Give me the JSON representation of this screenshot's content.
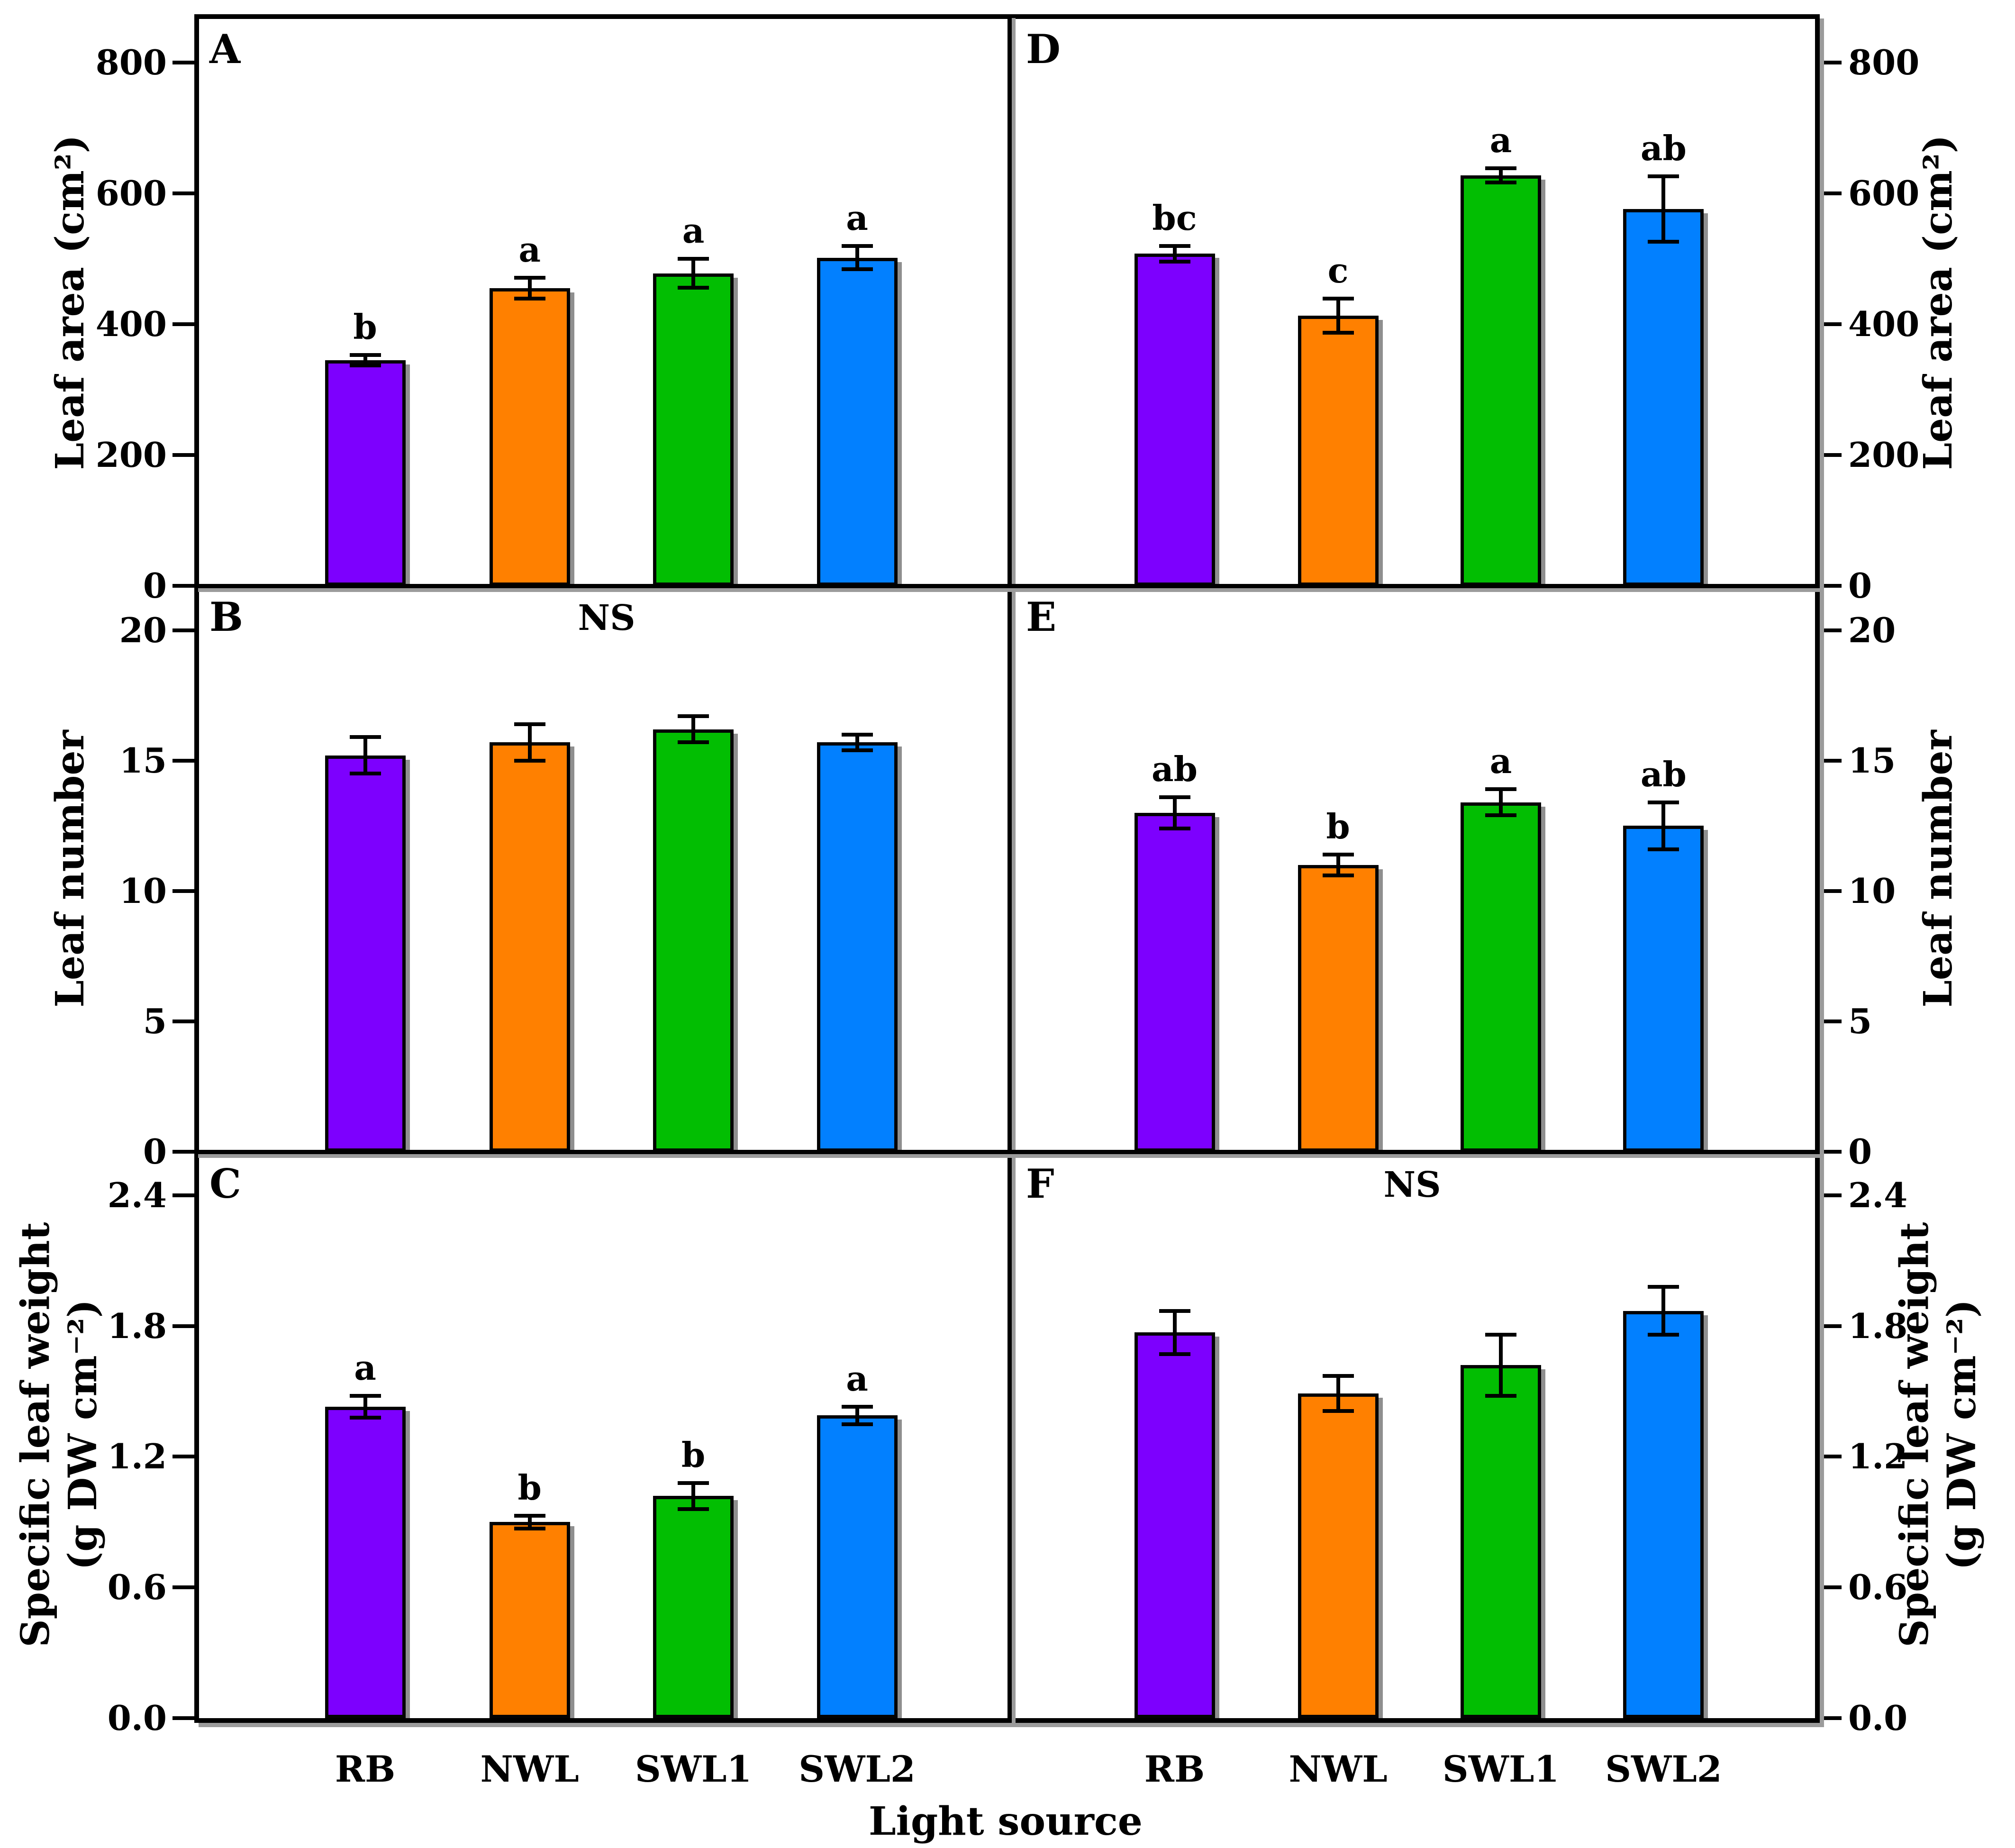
{
  "figure": {
    "xlabel": "Light source",
    "categories": [
      "RB",
      "NWL",
      "SWL1",
      "SWL2"
    ],
    "bar_colors": [
      "#7D00FE",
      "#FF8000",
      "#02BE02",
      "#0280FF"
    ],
    "ns_label": "NS",
    "axis_color": "#000000",
    "shadow_color": "#9b9b9b",
    "background": "#ffffff"
  },
  "chart_data": [
    {
      "panel": "A",
      "type": "bar",
      "row": 0,
      "side": "left",
      "ylabel_lines": [
        "Leaf area (cm²)"
      ],
      "axis_max": 867,
      "tick_values": [
        0,
        200,
        400,
        600,
        800
      ],
      "tick_labels": [
        "0",
        "200",
        "400",
        "600",
        "800"
      ],
      "categories": [
        "RB",
        "NWL",
        "SWL1",
        "SWL2"
      ],
      "values": [
        345,
        455,
        478,
        502
      ],
      "errors": [
        8,
        16,
        22,
        18
      ],
      "sig_letters": [
        "b",
        "a",
        "a",
        "a"
      ],
      "ns": false
    },
    {
      "panel": "B",
      "type": "bar",
      "row": 1,
      "side": "left",
      "ylabel_lines": [
        "Leaf number"
      ],
      "axis_max": 21.7,
      "tick_values": [
        0,
        5,
        10,
        15,
        20
      ],
      "tick_labels": [
        "0",
        "5",
        "10",
        "15",
        "20"
      ],
      "categories": [
        "RB",
        "NWL",
        "SWL1",
        "SWL2"
      ],
      "values": [
        15.2,
        15.7,
        16.2,
        15.7
      ],
      "errors": [
        0.7,
        0.7,
        0.5,
        0.3
      ],
      "sig_letters": null,
      "ns": true
    },
    {
      "panel": "C",
      "type": "bar",
      "row": 2,
      "side": "left",
      "ylabel_lines": [
        "Specific leaf weight",
        "(g DW cm⁻²)"
      ],
      "axis_max": 2.6,
      "tick_values": [
        0,
        0.6,
        1.2,
        1.8,
        2.4
      ],
      "tick_labels": [
        "0.0",
        "0.6",
        "1.2",
        "1.8",
        "2.4"
      ],
      "categories": [
        "RB",
        "NWL",
        "SWL1",
        "SWL2"
      ],
      "values": [
        1.43,
        0.9,
        1.02,
        1.39
      ],
      "errors": [
        0.05,
        0.03,
        0.06,
        0.04
      ],
      "sig_letters": [
        "a",
        "b",
        "b",
        "a"
      ],
      "ns": false
    },
    {
      "panel": "D",
      "type": "bar",
      "row": 0,
      "side": "right",
      "ylabel_lines": [
        "Leaf area (cm²)"
      ],
      "axis_max": 867,
      "tick_values": [
        0,
        200,
        400,
        600,
        800
      ],
      "tick_labels": [
        "0",
        "200",
        "400",
        "600",
        "800"
      ],
      "categories": [
        "RB",
        "NWL",
        "SWL1",
        "SWL2"
      ],
      "values": [
        508,
        413,
        628,
        576
      ],
      "errors": [
        12,
        26,
        11,
        50
      ],
      "sig_letters": [
        "bc",
        "c",
        "a",
        "ab"
      ],
      "ns": false
    },
    {
      "panel": "E",
      "type": "bar",
      "row": 1,
      "side": "right",
      "ylabel_lines": [
        "Leaf number"
      ],
      "axis_max": 21.7,
      "tick_values": [
        0,
        5,
        10,
        15,
        20
      ],
      "tick_labels": [
        "0",
        "5",
        "10",
        "15",
        "20"
      ],
      "categories": [
        "RB",
        "NWL",
        "SWL1",
        "SWL2"
      ],
      "values": [
        13.0,
        11.0,
        13.4,
        12.5
      ],
      "errors": [
        0.6,
        0.4,
        0.5,
        0.9
      ],
      "sig_letters": [
        "ab",
        "b",
        "a",
        "ab"
      ],
      "ns": false
    },
    {
      "panel": "F",
      "type": "bar",
      "row": 2,
      "side": "right",
      "ylabel_lines": [
        "Specific leaf weight",
        "(g DW cm⁻²)"
      ],
      "axis_max": 2.6,
      "tick_values": [
        0,
        0.6,
        1.2,
        1.8,
        2.4
      ],
      "tick_labels": [
        "0.0",
        "0.6",
        "1.2",
        "1.8",
        "2.4"
      ],
      "categories": [
        "RB",
        "NWL",
        "SWL1",
        "SWL2"
      ],
      "values": [
        1.77,
        1.49,
        1.62,
        1.87
      ],
      "errors": [
        0.1,
        0.08,
        0.14,
        0.11
      ],
      "sig_letters": null,
      "ns": true
    }
  ]
}
